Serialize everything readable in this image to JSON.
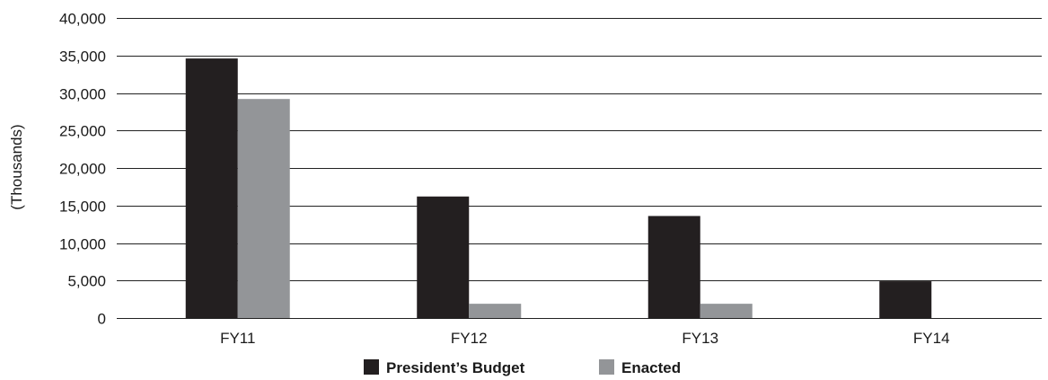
{
  "chart_data": {
    "type": "bar",
    "title": "",
    "xlabel": "",
    "ylabel": "(Thousands)",
    "categories": [
      "FY11",
      "FY12",
      "FY13",
      "FY14"
    ],
    "series": [
      {
        "name": "President’s Budget",
        "color": "#231f20",
        "values": [
          34600,
          16200,
          13600,
          4900
        ]
      },
      {
        "name": "Enacted",
        "color": "#939598",
        "values": [
          29200,
          1900,
          1900,
          0
        ]
      }
    ],
    "ylim": [
      0,
      40000
    ],
    "yticks": [
      0,
      5000,
      10000,
      15000,
      20000,
      25000,
      30000,
      35000,
      40000
    ],
    "ytick_labels": [
      "0",
      "5,000",
      "10,000",
      "15,000",
      "20,000",
      "25,000",
      "30,000",
      "35,000",
      "40,000"
    ],
    "grid": true,
    "legend_position": "bottom-center"
  }
}
